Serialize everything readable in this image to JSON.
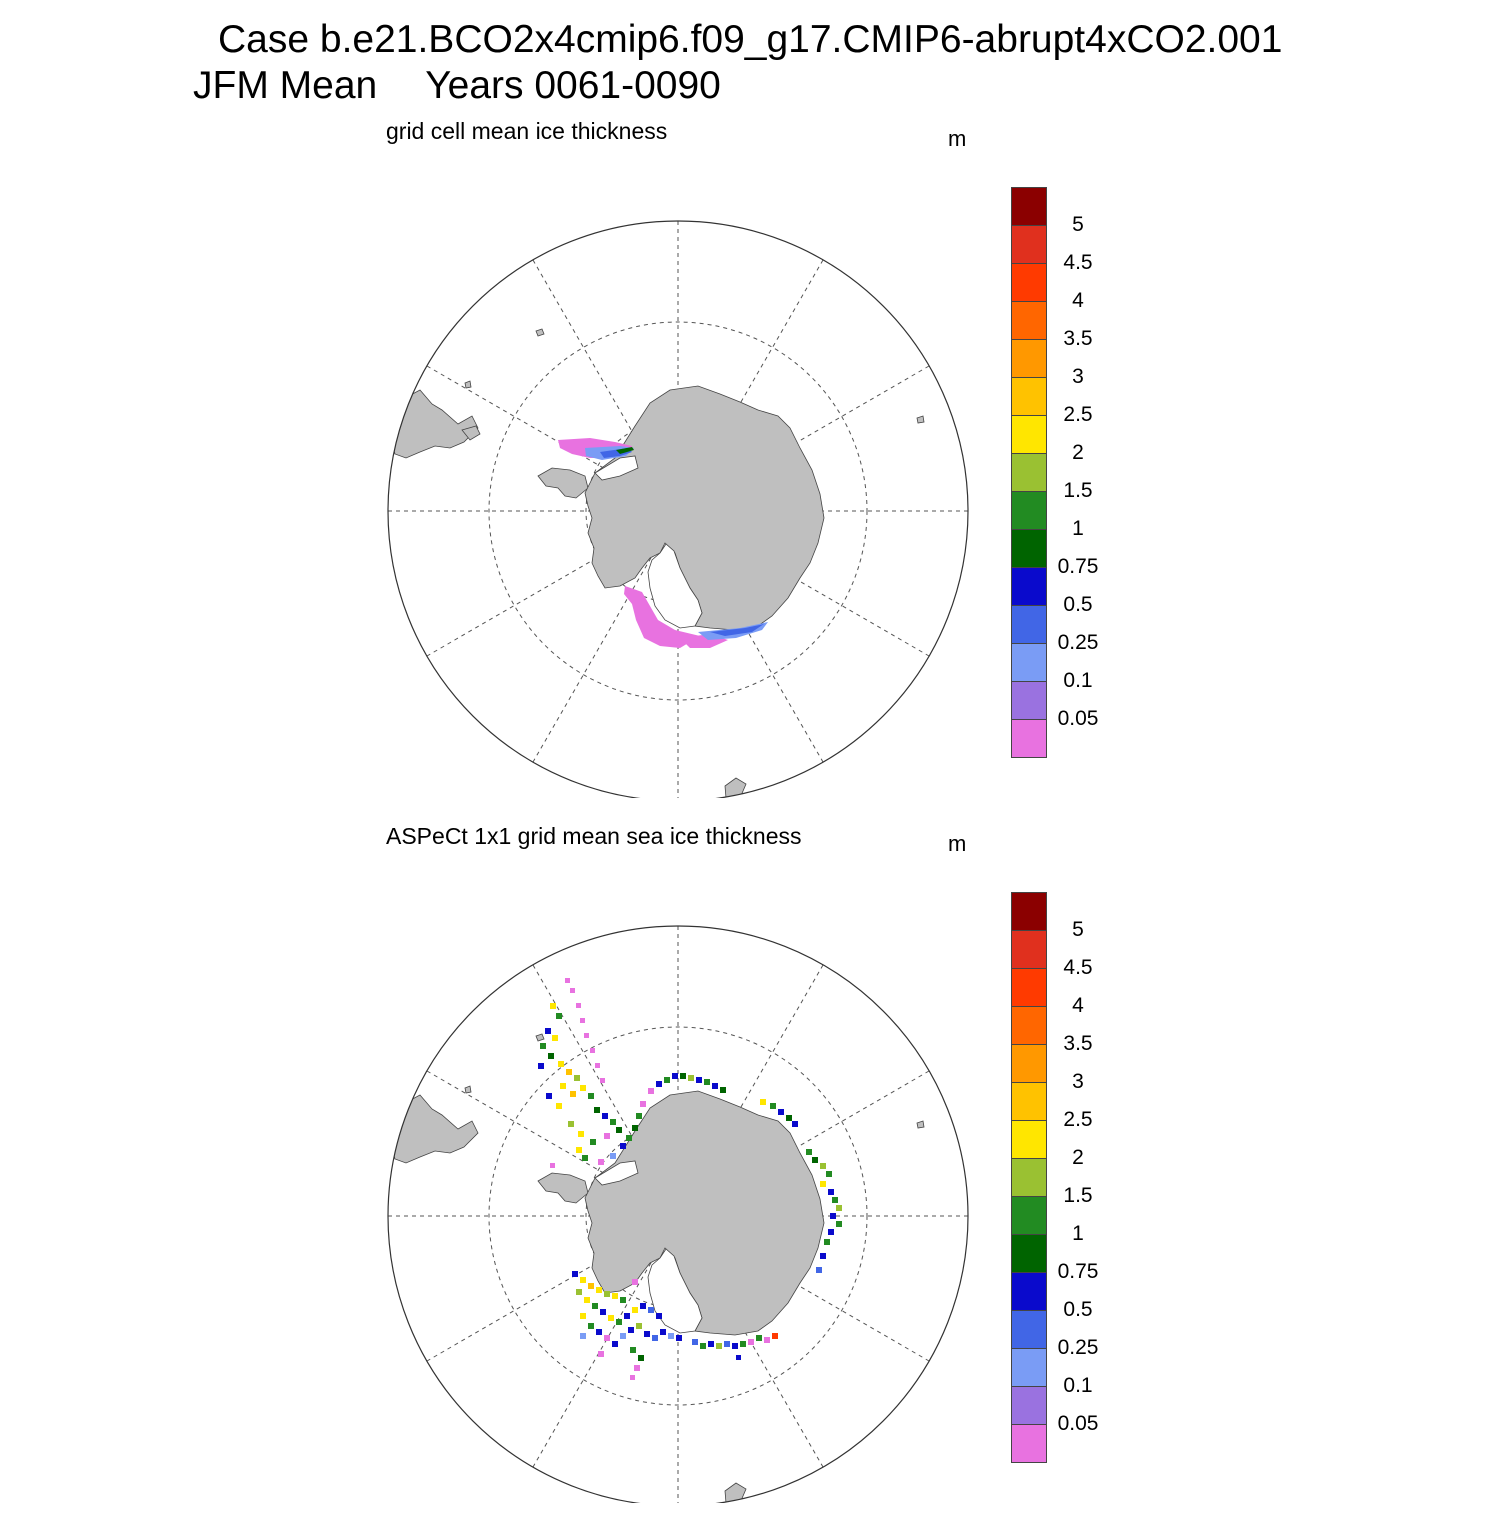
{
  "header": {
    "case_line": "Case b.e21.BCO2x4cmip6.f09_g17.CMIP6-abrupt4xCO2.001",
    "season": "JFM Mean",
    "years": "Years 0061-0090"
  },
  "colors": {
    "land": "#bfbfbf",
    "grid_line": "#555555",
    "colorbar": [
      "#e872e0",
      "#9a72e0",
      "#7a9cf5",
      "#4166e6",
      "#0a0acc",
      "#006400",
      "#228b22",
      "#9ac132",
      "#ffe600",
      "#ffc200",
      "#ff9800",
      "#ff6600",
      "#ff3a00",
      "#e0301e",
      "#8b0000"
    ]
  },
  "panels": [
    {
      "id": "model",
      "title": "grid cell mean ice thickness",
      "units": "m",
      "colorbar": {
        "labels": [
          "5",
          "4.5",
          "4",
          "3.5",
          "3",
          "2.5",
          "2",
          "1.5",
          "1",
          "0.75",
          "0.5",
          "0.25",
          "0.1",
          "0.05"
        ]
      }
    },
    {
      "id": "obs",
      "title": "ASPeCt 1x1 grid mean sea ice thickness",
      "units": "m",
      "colorbar": {
        "labels": [
          "5",
          "4.5",
          "4",
          "3.5",
          "3",
          "2.5",
          "2",
          "1.5",
          "1",
          "0.75",
          "0.5",
          "0.25",
          "0.1",
          "0.05"
        ]
      }
    }
  ]
}
